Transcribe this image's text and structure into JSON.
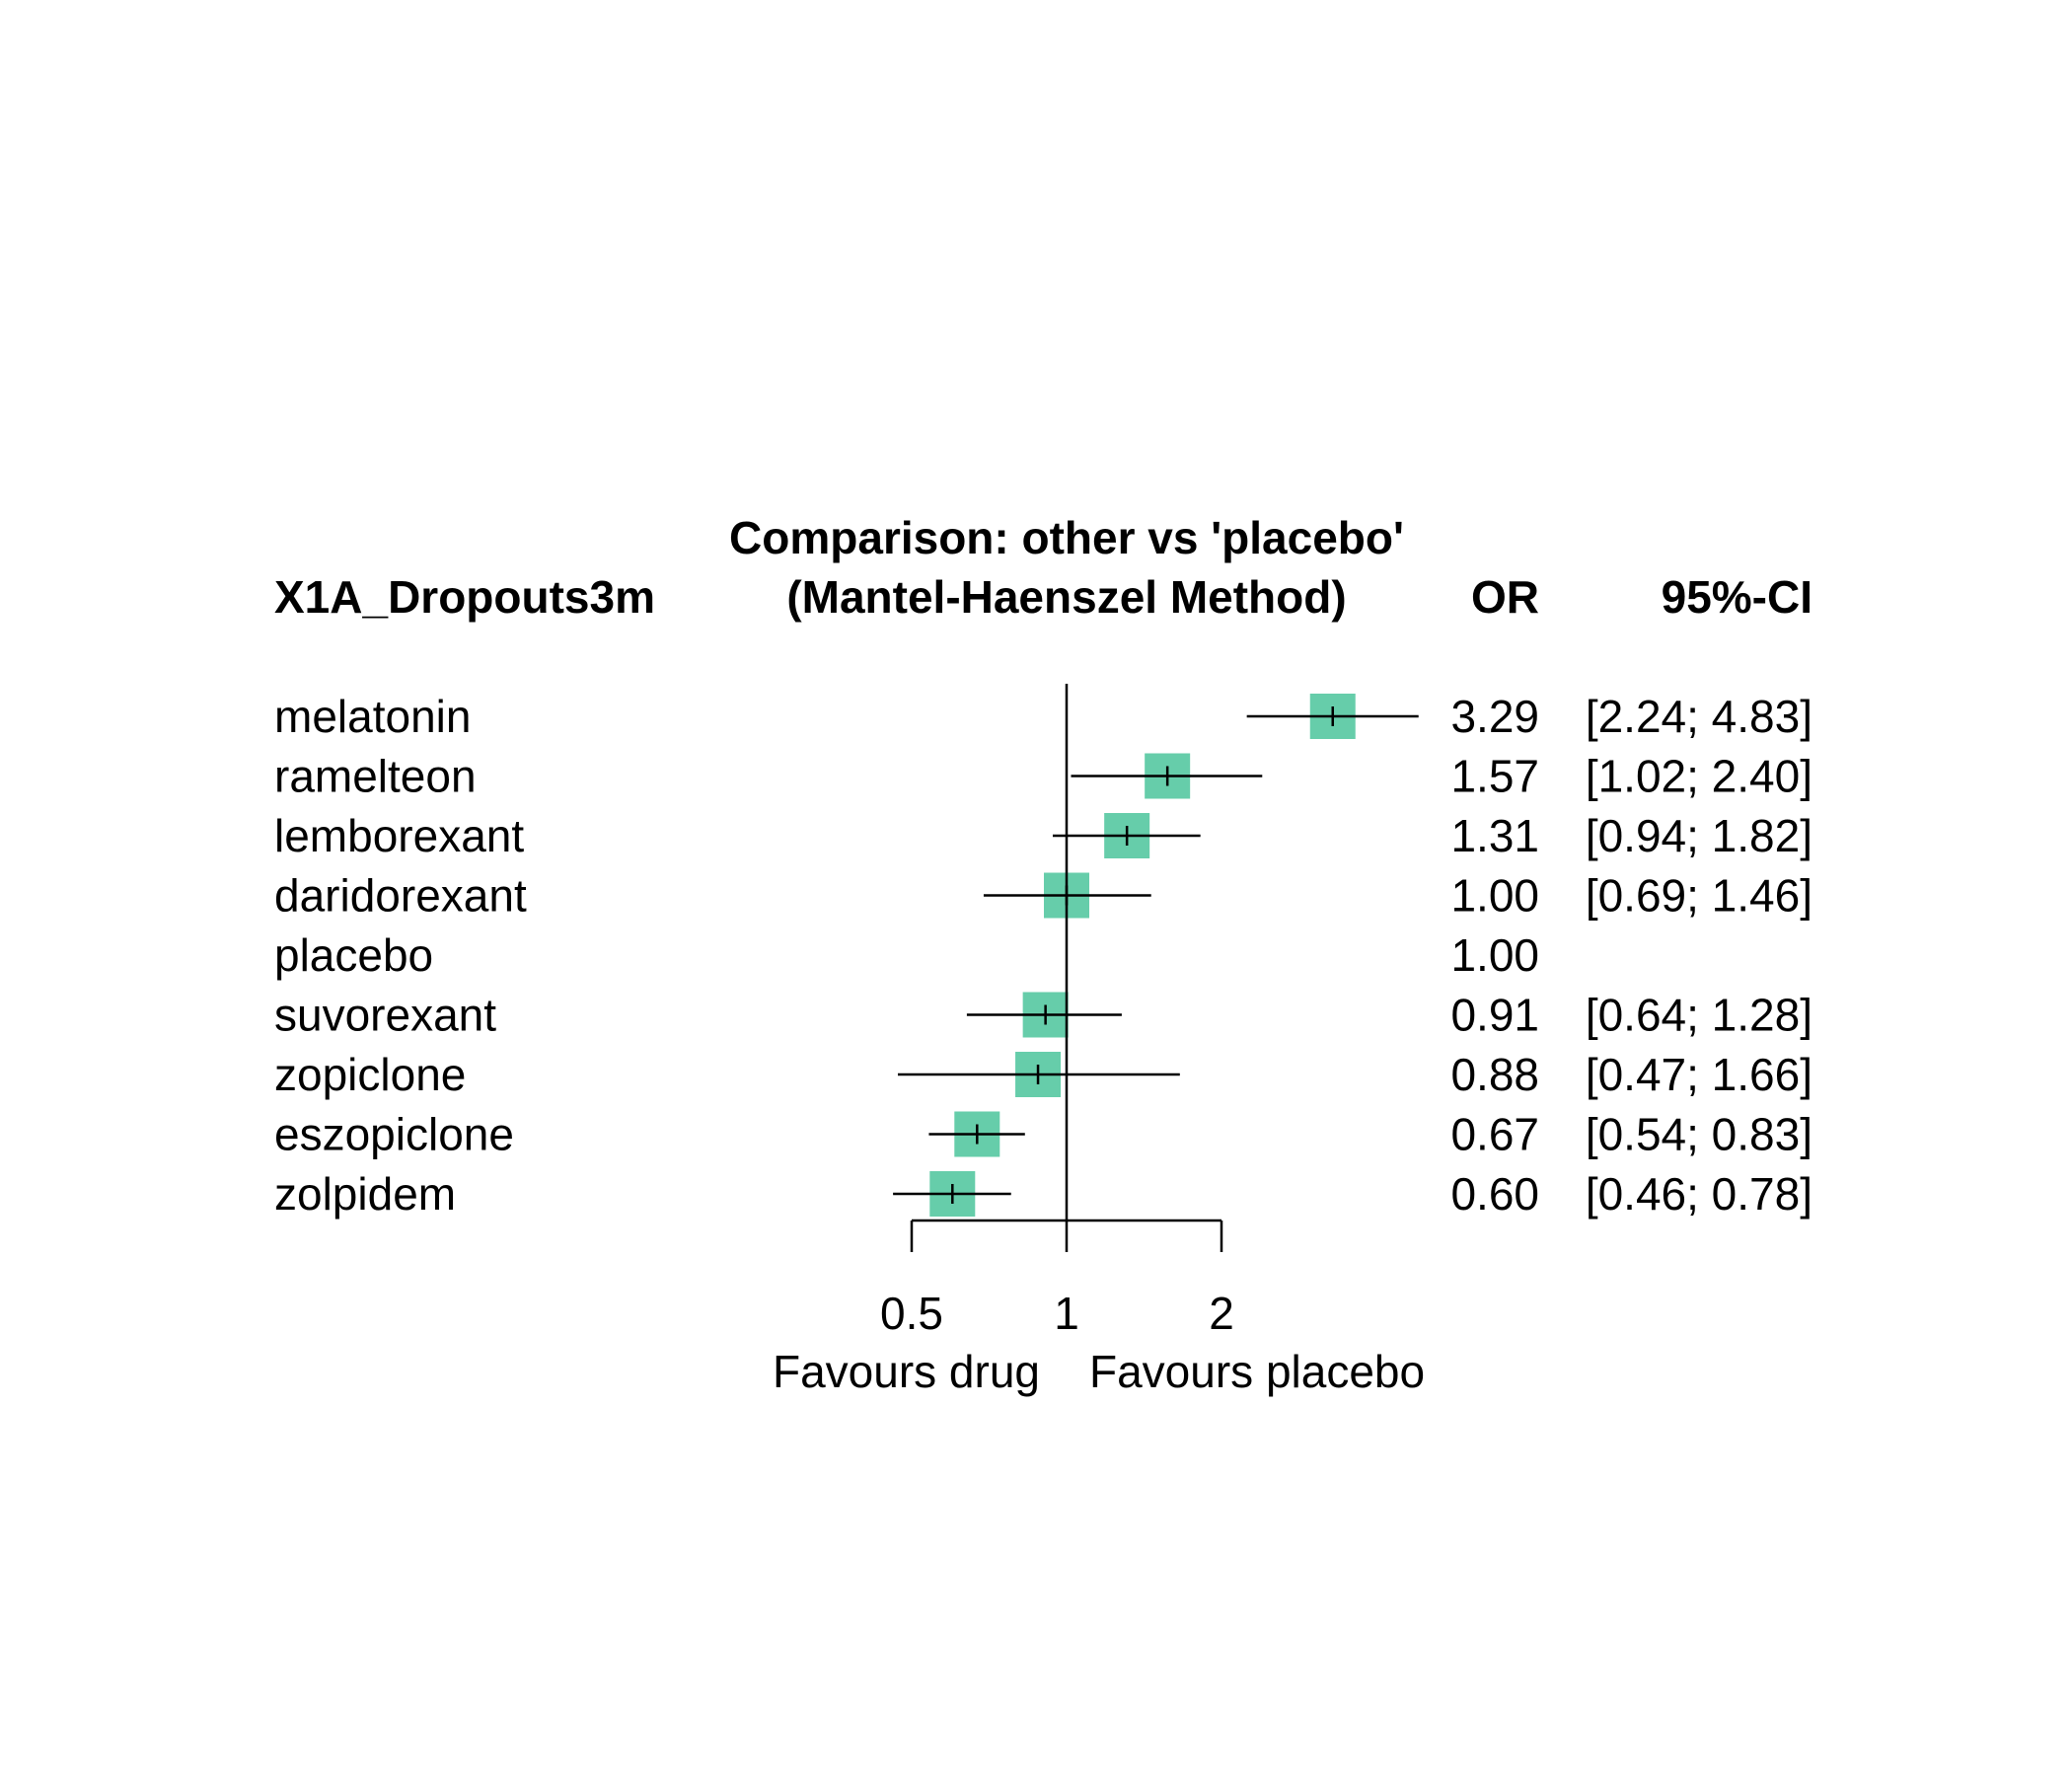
{
  "chart_data": {
    "type": "forest",
    "title": "Comparison: other vs 'placebo'",
    "subtitle": "(Mantel-Haenszel Method)",
    "outcome": "X1A_Dropouts3m",
    "col_or": "OR",
    "col_ci": "95%-CI",
    "marker_color": "#66CDAA",
    "xscale": "log",
    "xlim": [
      0.5,
      2
    ],
    "xticks": [
      {
        "value": 0.5,
        "label": "0.5"
      },
      {
        "value": 1,
        "label": "1"
      },
      {
        "value": 2,
        "label": "2"
      }
    ],
    "favours_left": "Favours drug",
    "favours_right": "Favours placebo",
    "rows": [
      {
        "label": "melatonin",
        "or": 3.29,
        "lo": 2.24,
        "hi": 4.83,
        "or_text": "3.29",
        "ci_text": "[2.24; 4.83]"
      },
      {
        "label": "ramelteon",
        "or": 1.57,
        "lo": 1.02,
        "hi": 2.4,
        "or_text": "1.57",
        "ci_text": "[1.02; 2.40]"
      },
      {
        "label": "lemborexant",
        "or": 1.31,
        "lo": 0.94,
        "hi": 1.82,
        "or_text": "1.31",
        "ci_text": "[0.94; 1.82]"
      },
      {
        "label": "daridorexant",
        "or": 1.0,
        "lo": 0.69,
        "hi": 1.46,
        "or_text": "1.00",
        "ci_text": "[0.69; 1.46]"
      },
      {
        "label": "placebo",
        "or": 1.0,
        "lo": null,
        "hi": null,
        "or_text": "1.00",
        "ci_text": ""
      },
      {
        "label": "suvorexant",
        "or": 0.91,
        "lo": 0.64,
        "hi": 1.28,
        "or_text": "0.91",
        "ci_text": "[0.64; 1.28]"
      },
      {
        "label": "zopiclone",
        "or": 0.88,
        "lo": 0.47,
        "hi": 1.66,
        "or_text": "0.88",
        "ci_text": "[0.47; 1.66]"
      },
      {
        "label": "eszopiclone",
        "or": 0.67,
        "lo": 0.54,
        "hi": 0.83,
        "or_text": "0.67",
        "ci_text": "[0.54; 0.83]"
      },
      {
        "label": "zolpidem",
        "or": 0.6,
        "lo": 0.46,
        "hi": 0.78,
        "or_text": "0.60",
        "ci_text": "[0.46; 0.78]"
      }
    ]
  }
}
